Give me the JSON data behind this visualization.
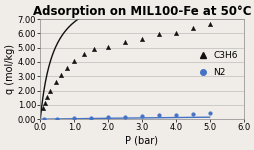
{
  "title": "Adsorption on MIL100-Fe at 50°C",
  "xlabel": "P (bar)",
  "ylabel": "q (mol/kg)",
  "xlim": [
    0,
    6.0
  ],
  "ylim": [
    0,
    7.0
  ],
  "xticks": [
    0.0,
    1.0,
    2.0,
    3.0,
    4.0,
    5.0,
    6.0
  ],
  "xtick_labels": [
    "0.0",
    "1.0",
    "2.0",
    "3.0",
    "4.0",
    "5.0",
    "6.0"
  ],
  "yticks": [
    0.0,
    1.0,
    2.0,
    3.0,
    4.0,
    5.0,
    6.0,
    7.0
  ],
  "ytick_labels": [
    "0.00",
    "1.00",
    "2.00",
    "3.00",
    "4.00",
    "5.00",
    "6.00",
    "7.00"
  ],
  "c3h6_scatter_x": [
    0.07,
    0.13,
    0.2,
    0.3,
    0.45,
    0.6,
    0.8,
    1.0,
    1.3,
    1.6,
    2.0,
    2.5,
    3.0,
    3.5,
    4.0,
    4.5,
    5.0
  ],
  "c3h6_scatter_y": [
    0.78,
    1.1,
    1.55,
    2.0,
    2.6,
    3.1,
    3.55,
    4.1,
    4.55,
    4.9,
    5.05,
    5.4,
    5.6,
    5.95,
    6.05,
    6.35,
    6.65
  ],
  "n2_scatter_x": [
    0.1,
    0.5,
    1.0,
    1.5,
    2.0,
    2.5,
    3.0,
    3.5,
    4.0,
    4.5,
    5.0
  ],
  "n2_scatter_y": [
    0.01,
    0.04,
    0.07,
    0.1,
    0.15,
    0.18,
    0.22,
    0.27,
    0.3,
    0.35,
    0.4
  ],
  "c3h6_color": "#111111",
  "n2_color": "#4472c4",
  "background_color": "#f0ede8",
  "plot_bg_color": "#f0ede8",
  "title_fontsize": 8.5,
  "axis_fontsize": 7,
  "tick_fontsize": 6,
  "legend_fontsize": 6.5,
  "c3h6_langmuir_qm": 9.5,
  "c3h6_langmuir_b": 2.5,
  "n2_langmuir_qm": 0.65,
  "n2_langmuir_b": 0.055
}
